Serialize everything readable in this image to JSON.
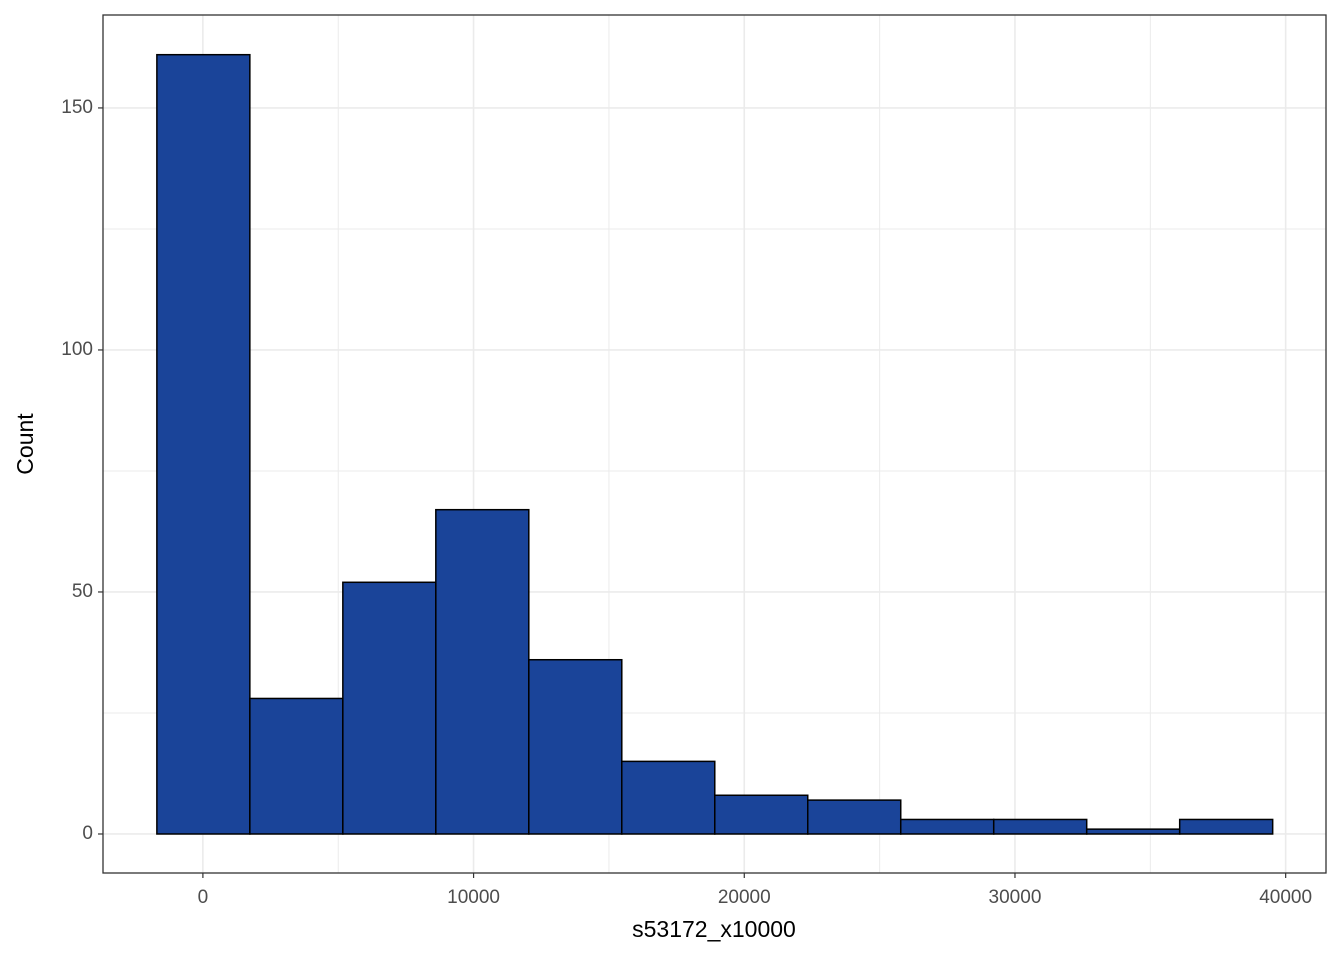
{
  "chart_data": {
    "type": "histogram",
    "x_label": "s53172_x10000",
    "y_label": "Count",
    "bins": [
      -1700,
      1735,
      5170,
      8605,
      12040,
      15475,
      18910,
      22345,
      25780,
      29215,
      32650,
      36085,
      39520
    ],
    "values": [
      161,
      28,
      52,
      67,
      36,
      15,
      8,
      7,
      3,
      3,
      1,
      3
    ],
    "color": "#1a4499",
    "edge_color": "#000000",
    "xlim": [
      -3690,
      41490
    ],
    "ylim": [
      -8.06,
      169.2
    ],
    "xticks": [
      0,
      10000,
      20000,
      30000,
      40000
    ],
    "yticks": [
      0,
      50,
      100,
      150
    ],
    "grid": true
  }
}
